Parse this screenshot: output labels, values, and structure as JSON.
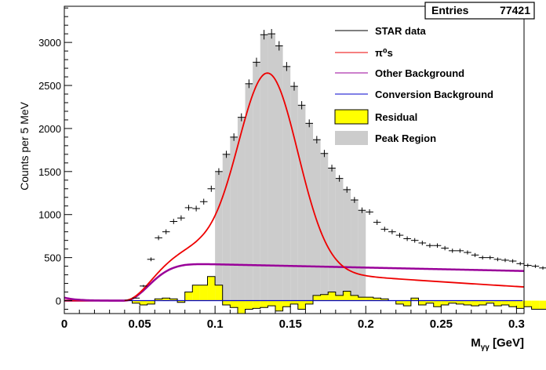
{
  "chart_data": {
    "type": "histogram",
    "xlabel": "M",
    "xlabel_sub": "γγ",
    "xlabel_unit": "[GeV]",
    "ylabel": "Counts per 5 MeV",
    "xlim": [
      0,
      0.305
    ],
    "ylim": [
      -150,
      3420
    ],
    "x_ticks": [
      0,
      0.05,
      0.1,
      0.15,
      0.2,
      0.25,
      0.3
    ],
    "x_tick_labels": [
      "0",
      "0.05",
      "0.1",
      "0.15",
      "0.2",
      "0.25",
      "0.3"
    ],
    "y_ticks": [
      0,
      500,
      1000,
      1500,
      2000,
      2500,
      3000
    ],
    "y_tick_labels": [
      "0",
      "500",
      "1000",
      "1500",
      "2000",
      "2500",
      "3000"
    ],
    "stats": {
      "label": "Entries",
      "value": "77421"
    },
    "peak_region": [
      0.1,
      0.2
    ],
    "bin_width": 0.005,
    "bin_start": 0.04,
    "series": [
      {
        "name": "STAR data",
        "color": "#000000",
        "style": "cross",
        "values": [
          5,
          30,
          170,
          480,
          730,
          800,
          920,
          960,
          1080,
          1070,
          1150,
          1300,
          1500,
          1700,
          1900,
          2130,
          2520,
          2770,
          3090,
          3100,
          2960,
          2720,
          2490,
          2270,
          2060,
          1870,
          1710,
          1540,
          1420,
          1290,
          1170,
          1050,
          1030,
          910,
          830,
          800,
          760,
          720,
          700,
          670,
          640,
          640,
          610,
          580,
          580,
          560,
          530,
          500,
          500,
          480,
          470,
          460,
          430,
          410,
          400,
          380
        ]
      },
      {
        "name": "π⁰s",
        "color": "#ee0000",
        "style": "line"
      },
      {
        "name": "Other Background",
        "color": "#990099",
        "style": "line"
      },
      {
        "name": "Conversion Background",
        "color": "#0000cc",
        "style": "line"
      },
      {
        "name": "Residual",
        "color": "#ffff00",
        "style": "fill",
        "values": [
          0,
          -30,
          -50,
          -40,
          20,
          30,
          20,
          -20,
          100,
          180,
          180,
          280,
          180,
          -50,
          -80,
          -150,
          -100,
          -90,
          -80,
          -60,
          -120,
          -70,
          -40,
          -100,
          -40,
          60,
          70,
          100,
          60,
          110,
          60,
          40,
          40,
          30,
          20,
          0,
          -40,
          -60,
          30,
          -50,
          -30,
          -70,
          -50,
          -30,
          -40,
          -50,
          -60,
          -50,
          -30,
          -60,
          -50,
          -70,
          -90,
          -70,
          -100,
          -100
        ]
      },
      {
        "name": "Peak Region",
        "color": "#cccccc",
        "style": "fill"
      }
    ]
  }
}
